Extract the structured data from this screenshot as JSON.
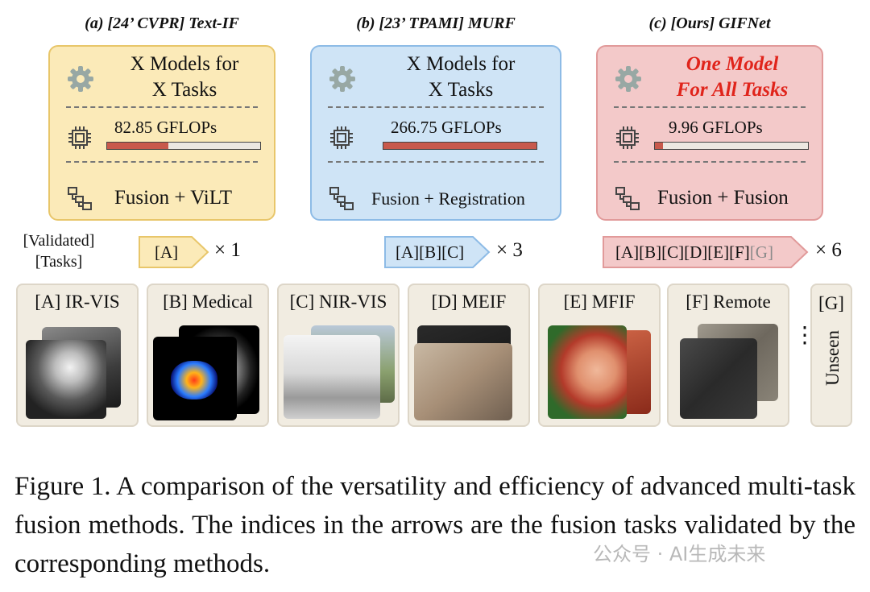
{
  "methods": [
    {
      "title": "(a) [24’ CVPR] Text-IF",
      "models": [
        "X Models for",
        "X Tasks"
      ],
      "gflops": "82.85 GFLOPs",
      "gflops_fill": 0.4,
      "fusion": "Fusion + ViLT",
      "tasks_arrow": "[A]",
      "times": "× 1"
    },
    {
      "title": "(b) [23’ TPAMI] MURF",
      "models": [
        "X Models for",
        "X Tasks"
      ],
      "gflops": "266.75 GFLOPs",
      "gflops_fill": 1.0,
      "fusion": "Fusion + Registration",
      "tasks_arrow": "[A][B][C]",
      "times": "× 3"
    },
    {
      "title": "(c) [Ours] GIFNet",
      "models": [
        "One Model",
        "For All Tasks"
      ],
      "gflops": "9.96 GFLOPs",
      "gflops_fill": 0.05,
      "fusion": "Fusion + Fusion",
      "tasks_arrow": "[A][B][C][D][E][F]",
      "tasks_arrow_grey": "[G]",
      "times": "× 6"
    }
  ],
  "validated_label": [
    "[Validated]",
    "[Tasks]"
  ],
  "tasks": [
    {
      "label": "[A] IR-VIS"
    },
    {
      "label": "[B] Medical"
    },
    {
      "label": "[C] NIR-VIS"
    },
    {
      "label": "[D] MEIF"
    },
    {
      "label": "[E] MFIF"
    },
    {
      "label": "[F] Remote"
    }
  ],
  "unseen": {
    "label": "[G]",
    "word": "Unseen",
    "dots": "⋮"
  },
  "caption": "Figure 1.  A comparison of the versatility and efficiency of advanced multi-task fusion methods. The indices in the arrows are the fusion tasks validated by the corresponding methods.",
  "watermark": "公众号 · AI生成未来",
  "colors": {
    "yellow_panel": "#fbeab8",
    "blue_panel": "#cfe4f6",
    "red_panel": "#f3c9c9",
    "highlight_red": "#e0241b",
    "bar_fill": "#c8594c"
  }
}
